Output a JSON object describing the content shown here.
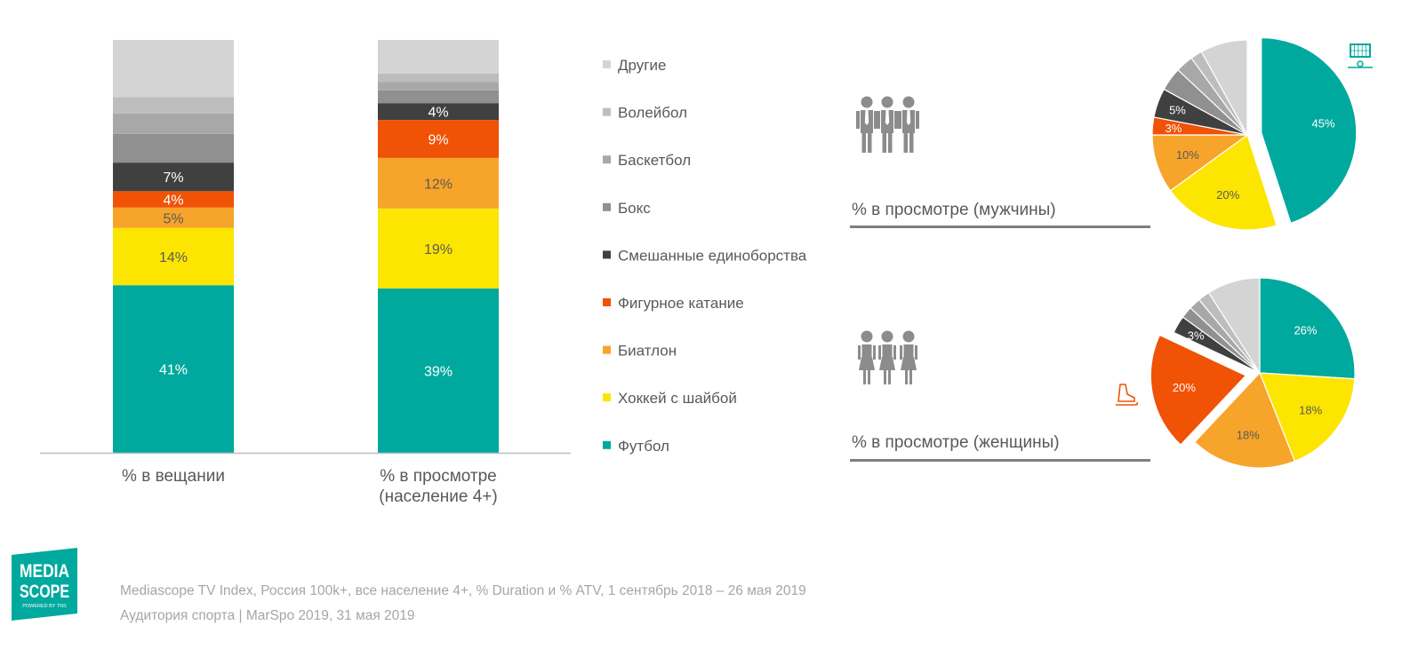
{
  "chart_data": [
    {
      "type": "bar",
      "subtype": "stacked-100",
      "categories": [
        "% в вещании",
        "% в просмотре (население 4+)"
      ],
      "category_lines": [
        [
          "% в вещании"
        ],
        [
          "% в просмотре",
          "(население 4+)"
        ]
      ],
      "series": [
        {
          "name": "Футбол",
          "values": [
            41,
            39
          ],
          "labels": [
            "41%",
            "39%"
          ],
          "color": "#00a99d"
        },
        {
          "name": "Хоккей с шайбой",
          "values": [
            14,
            19
          ],
          "labels": [
            "14%",
            "19%"
          ],
          "color": "#fce500"
        },
        {
          "name": "Биатлон",
          "values": [
            5,
            12
          ],
          "labels": [
            "5%",
            "12%"
          ],
          "color": "#f7a42b"
        },
        {
          "name": "Фигурное катание",
          "values": [
            4,
            9
          ],
          "labels": [
            "4%",
            "9%"
          ],
          "color": "#f05206"
        },
        {
          "name": "Смешанные единоборства",
          "values": [
            7,
            4
          ],
          "labels": [
            "7%",
            "4%"
          ],
          "color": "#404040"
        },
        {
          "name": "Бокс",
          "values": [
            7,
            3
          ],
          "labels": [
            "",
            ""
          ],
          "color": "#909090"
        },
        {
          "name": "Баскетбол",
          "values": [
            5,
            2
          ],
          "labels": [
            "",
            ""
          ],
          "color": "#a8a8a8"
        },
        {
          "name": "Волейбол",
          "values": [
            4,
            2
          ],
          "labels": [
            "",
            ""
          ],
          "color": "#bdbdbd"
        },
        {
          "name": "Другие",
          "values": [
            14,
            8
          ],
          "labels": [
            "",
            ""
          ],
          "color": "#d4d4d4"
        }
      ],
      "ylim": [
        0,
        100
      ],
      "legend_order": [
        "Другие",
        "Волейбол",
        "Баскетбол",
        "Бокс",
        "Смешанные единоборства",
        "Фигурное катание",
        "Биатлон",
        "Хоккей с шайбой",
        "Футбол"
      ],
      "legend_position": "right"
    },
    {
      "type": "pie",
      "title": "% в просмотре (мужчины)",
      "slices": [
        {
          "name": "Футбол",
          "value": 45,
          "label": "45%",
          "exploded": true
        },
        {
          "name": "Хоккей с шайбой",
          "value": 20,
          "label": "20%"
        },
        {
          "name": "Биатлон",
          "value": 10,
          "label": "10%"
        },
        {
          "name": "Фигурное катание",
          "value": 3,
          "label": "3%"
        },
        {
          "name": "Смешанные единоборства",
          "value": 5,
          "label": "5%"
        },
        {
          "name": "Бокс",
          "value": 4,
          "label": ""
        },
        {
          "name": "Баскетбол",
          "value": 3,
          "label": ""
        },
        {
          "name": "Волейбол",
          "value": 2,
          "label": ""
        },
        {
          "name": "Другие",
          "value": 8,
          "label": ""
        }
      ]
    },
    {
      "type": "pie",
      "title": "% в просмотре  (женщины)",
      "slices": [
        {
          "name": "Футбол",
          "value": 26,
          "label": "26%"
        },
        {
          "name": "Хоккей с шайбой",
          "value": 18,
          "label": "18%"
        },
        {
          "name": "Биатлон",
          "value": 18,
          "label": "18%"
        },
        {
          "name": "Фигурное катание",
          "value": 20,
          "label": "20%",
          "exploded": true
        },
        {
          "name": "Смешанные единоборства",
          "value": 3,
          "label": "3%"
        },
        {
          "name": "Бокс",
          "value": 2,
          "label": ""
        },
        {
          "name": "Баскетбол",
          "value": 2,
          "label": ""
        },
        {
          "name": "Волейбол",
          "value": 2,
          "label": ""
        },
        {
          "name": "Другие",
          "value": 9,
          "label": ""
        }
      ]
    }
  ],
  "icons": {
    "men": "men-group-icon",
    "women": "women-group-icon",
    "football": "football-goal-icon",
    "skate": "ice-skate-icon"
  },
  "logo": {
    "line1": "MEDIA",
    "line2": "SCOPE",
    "tagline": "POWERED BY TNS",
    "color": "#00a99d"
  },
  "footer": {
    "source": "Mediascope TV Index, Россия 100k+, все население 4+, % Duration и % ATV, 1 сентябрь 2018 – 26 мая 2019",
    "event": "Аудитория спорта | MarSpo 2019, 31 мая 2019"
  }
}
